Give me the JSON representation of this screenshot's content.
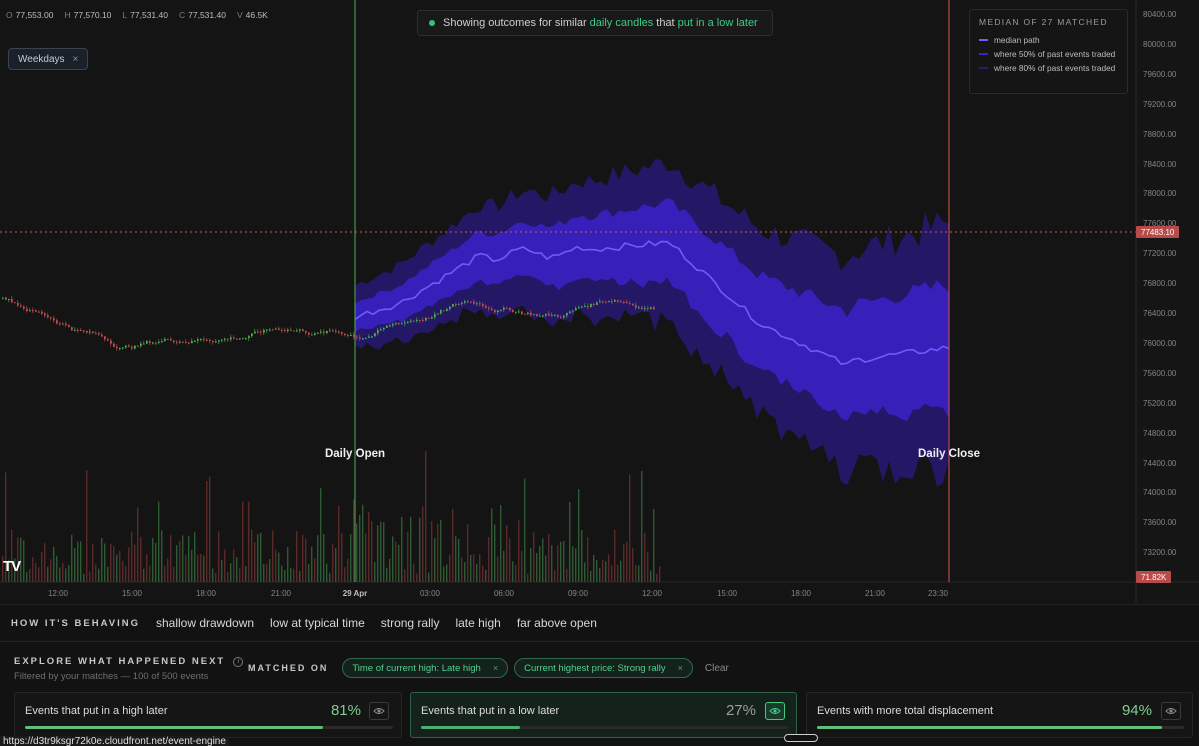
{
  "ohlc": [
    {
      "k": "O",
      "v": "77,553.00"
    },
    {
      "k": "H",
      "v": "77,570.10"
    },
    {
      "k": "L",
      "v": "77,531.40"
    },
    {
      "k": "C",
      "v": "77,531.40"
    },
    {
      "k": "V",
      "v": "46.5K"
    }
  ],
  "filter_chip": {
    "label": "Weekdays",
    "close": "×"
  },
  "notice": {
    "prefix": "Showing outcomes for similar",
    "highlight1": "daily candles",
    "middle": "that",
    "highlight2": "put in a low later"
  },
  "legend": {
    "title": "MEDIAN OF 27 MATCHED",
    "items": [
      {
        "label": "median path",
        "color": "#6b5cff"
      },
      {
        "label": "where 50% of past events traded",
        "color": "#3b22c9"
      },
      {
        "label": "where 80% of past events traded",
        "color": "#2a1880"
      }
    ]
  },
  "price_axis": [
    "80400.00",
    "80000.00",
    "79600.00",
    "79200.00",
    "78800.00",
    "78400.00",
    "78000.00",
    "77600.00",
    "77200.00",
    "76800.00",
    "76400.00",
    "76000.00",
    "75600.00",
    "75200.00",
    "74800.00",
    "74400.00",
    "74000.00",
    "73600.00",
    "73200.00"
  ],
  "current_price": "77483.10",
  "volume_badge": "71.82K",
  "time_axis": [
    "12:00",
    "15:00",
    "18:00",
    "21:00",
    "29 Apr",
    "03:00",
    "06:00",
    "09:00",
    "12:00",
    "15:00",
    "18:00",
    "21:00",
    "23:30"
  ],
  "markers": {
    "open": "Daily Open",
    "close": "Daily Close"
  },
  "logo": "TV",
  "behaving": {
    "title": "HOW IT'S BEHAVING",
    "tags": [
      "shallow drawdown",
      "low at typical time",
      "strong rally",
      "late high",
      "far above open"
    ]
  },
  "explore": {
    "title": "EXPLORE WHAT HAPPENED NEXT",
    "info": "i",
    "subtitle": "Filtered by your matches — 100 of 500 events",
    "matched_label": "MATCHED ON",
    "chips": [
      {
        "label": "Time of current high: Late high",
        "close": "×"
      },
      {
        "label": "Current highest price: Strong rally",
        "close": "×"
      }
    ],
    "clear": "Clear",
    "cards": [
      {
        "label": "Events that put in a high later",
        "pct": "81%",
        "value": 81,
        "active": false
      },
      {
        "label": "Events that put in a low later",
        "pct": "27%",
        "value": 27,
        "active": true
      },
      {
        "label": "Events with more total displacement",
        "pct": "94%",
        "value": 94,
        "active": false
      }
    ]
  },
  "status_url": "https://d3tr9ksgr72k0e.cloudfront.net/event-engine",
  "colors": {
    "up": "#4caf50",
    "down": "#c0504d",
    "median": "#6b5cff",
    "band50": "#3b22c9",
    "band80": "#2a1880",
    "accent": "#3ecb86"
  }
}
